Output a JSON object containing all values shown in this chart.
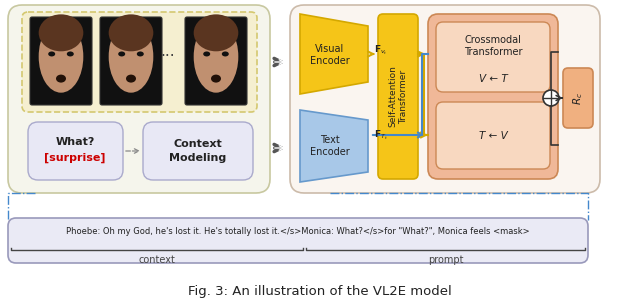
{
  "bg_color": "#ffffff",
  "left_outer_fc": "#f5f5ec",
  "left_outer_ec": "#c8c8a0",
  "face_box_fc": "#f5efd0",
  "face_box_ec": "#d4c870",
  "what_box_fc": "#e8e8f5",
  "what_box_ec": "#aaaacc",
  "context_box_fc": "#e8e8f5",
  "context_box_ec": "#aaaacc",
  "right_outer_fc": "#faf5f0",
  "right_outer_ec": "#ccbbaa",
  "yellow_fc": "#f5c518",
  "yellow_ec": "#d4a800",
  "blue_fc": "#a8c8e8",
  "blue_ec": "#6699cc",
  "crossmodal_outer_fc": "#f0b898",
  "crossmodal_outer_ec": "#cc8855",
  "crossmodal_inner_fc": "#f8d8c0",
  "crossmodal_inner_ec": "#cc8855",
  "output_box_fc": "#f0b080",
  "output_box_ec": "#cc8855",
  "bottom_box_fc": "#eaeaf5",
  "bottom_box_ec": "#9999bb",
  "caption_text": "Fig. 3: An illustration of the VL2E model",
  "bottom_sentence": "Phoebe: Oh my God, he's lost it. He's totally lost it.</s>Monica: What?</s>for \"What?\", Monica feels <mask>",
  "context_label": "context",
  "prompt_label": "prompt",
  "red_color": "#cc0000",
  "dark_text": "#222222",
  "blue_arrow": "#4488cc",
  "gold_arrow": "#d4a800",
  "black_arrow": "#333333",
  "dashed_line_color": "#4488cc"
}
